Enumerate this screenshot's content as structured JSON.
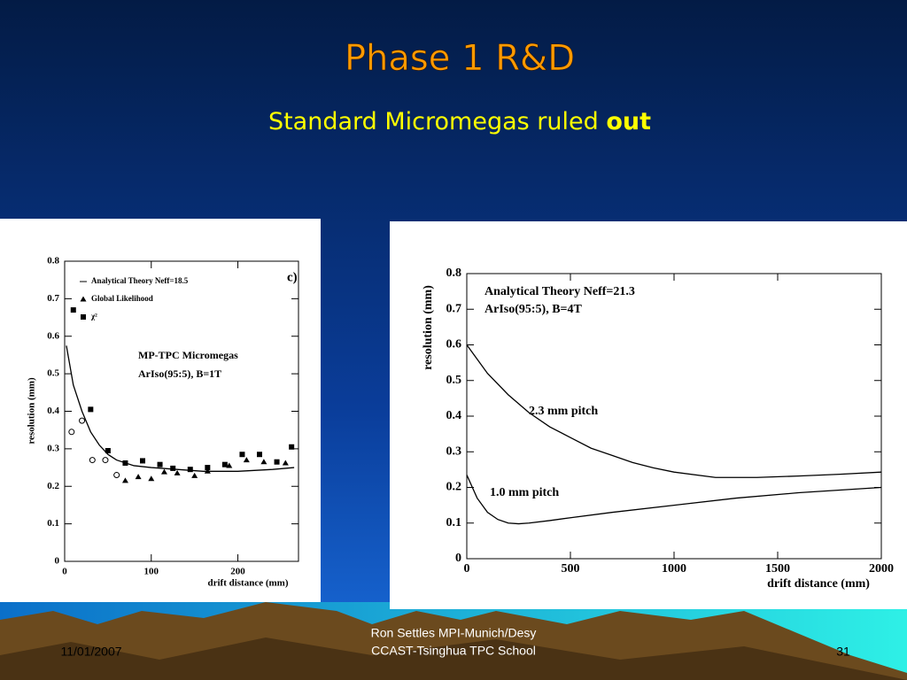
{
  "slide": {
    "title": "Phase 1 R&D",
    "subtitle": "Standard Micromegas ruled",
    "subtitle_emphasis": "out"
  },
  "footer": {
    "date": "11/01/2007",
    "author": "Ron Settles  MPI-Munich/Desy",
    "event": "CCAST-Tsinghua TPC School",
    "page": "31"
  },
  "chart_data": [
    {
      "type": "scatter",
      "xlabel": "drift distance (mm)",
      "ylabel": "resolution (mm)",
      "annotations": [
        "c)",
        "MP-TPC Micromegas",
        "ArIso(95:5), B=1T"
      ],
      "xlim": [
        0,
        270
      ],
      "xticks": [
        0,
        100,
        200
      ],
      "ylim": [
        0,
        0.8
      ],
      "yticks": [
        0,
        0.1,
        0.2,
        0.3,
        0.4,
        0.5,
        0.6,
        0.7,
        0.8
      ],
      "legend": "upper left",
      "series": [
        {
          "name": "Analytical Theory Neff=18.5",
          "marker": "line",
          "color": "#000000",
          "x": [
            2,
            10,
            20,
            30,
            40,
            50,
            60,
            80,
            100,
            130,
            160,
            200,
            240,
            265
          ],
          "values": [
            0.575,
            0.47,
            0.4,
            0.345,
            0.31,
            0.285,
            0.27,
            0.255,
            0.25,
            0.245,
            0.24,
            0.24,
            0.245,
            0.25
          ]
        },
        {
          "name": "Global Likelihood",
          "marker": "triangle",
          "color": "#000000",
          "x": [
            70,
            85,
            100,
            115,
            130,
            150,
            165,
            190,
            210,
            230,
            255
          ],
          "values": [
            0.215,
            0.225,
            0.22,
            0.238,
            0.235,
            0.228,
            0.24,
            0.255,
            0.27,
            0.265,
            0.262
          ]
        },
        {
          "name": "χ²",
          "marker": "square",
          "color": "#000000",
          "x": [
            10,
            30,
            50,
            70,
            90,
            110,
            125,
            145,
            165,
            185,
            205,
            225,
            245,
            262
          ],
          "values": [
            0.67,
            0.405,
            0.295,
            0.262,
            0.268,
            0.258,
            0.248,
            0.245,
            0.25,
            0.258,
            0.285,
            0.285,
            0.265,
            0.305
          ]
        },
        {
          "marker": "open",
          "color": "#000000",
          "x": [
            8,
            20,
            32,
            47,
            60
          ],
          "values": [
            0.345,
            0.375,
            0.27,
            0.27,
            0.23
          ]
        }
      ]
    },
    {
      "type": "line",
      "xlabel": "drift distance (mm)",
      "ylabel": "resolution (mm)",
      "annotations": [
        "Analytical Theory Neff=21.3",
        "ArIso(95:5), B=4T"
      ],
      "xlim": [
        0,
        2000
      ],
      "xticks": [
        0,
        500,
        1000,
        1500,
        2000
      ],
      "ylim": [
        0,
        0.8
      ],
      "yticks": [
        0,
        0.1,
        0.2,
        0.3,
        0.4,
        0.5,
        0.6,
        0.7,
        0.8
      ],
      "series": [
        {
          "name": "2.3 mm pitch",
          "marker": "line",
          "color": "#000000",
          "x": [
            0,
            100,
            200,
            300,
            400,
            500,
            600,
            700,
            800,
            900,
            1000,
            1200,
            1400,
            1600,
            1800,
            2000
          ],
          "values": [
            0.6,
            0.52,
            0.46,
            0.41,
            0.37,
            0.34,
            0.31,
            0.29,
            0.27,
            0.255,
            0.243,
            0.228,
            0.228,
            0.232,
            0.237,
            0.243
          ]
        },
        {
          "name": "1.0 mm pitch",
          "marker": "line",
          "color": "#000000",
          "x": [
            0,
            50,
            100,
            150,
            200,
            250,
            300,
            400,
            500,
            700,
            1000,
            1300,
            1600,
            2000
          ],
          "values": [
            0.235,
            0.17,
            0.13,
            0.11,
            0.1,
            0.098,
            0.1,
            0.107,
            0.115,
            0.13,
            0.15,
            0.17,
            0.185,
            0.2
          ]
        }
      ]
    }
  ]
}
